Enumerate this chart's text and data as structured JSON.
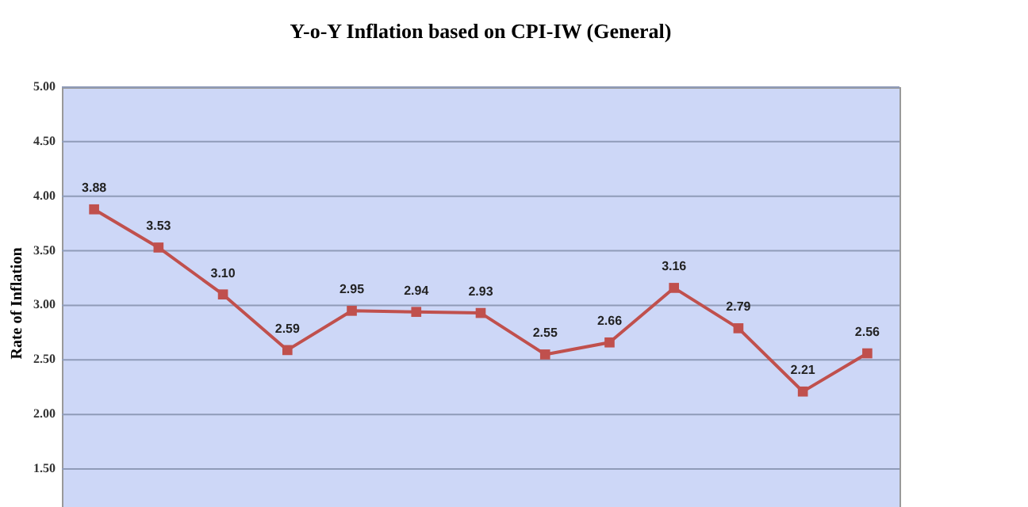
{
  "chart_data": {
    "type": "line",
    "title": "Y-o-Y Inflation based on CPI-IW (General)",
    "ylabel": "Rate of Inflation",
    "categories": [
      null,
      null,
      null,
      null,
      null,
      null,
      null,
      null,
      null,
      null,
      null,
      null,
      null
    ],
    "series": [
      {
        "color": "#c0504d",
        "values": [
          3.88,
          3.53,
          3.1,
          2.59,
          2.95,
          2.94,
          2.93,
          2.55,
          2.66,
          3.16,
          2.79,
          2.21,
          2.56
        ],
        "value_labels": [
          "3.88",
          "3.53",
          "3.10",
          "2.59",
          "2.95",
          "2.94",
          "2.93",
          "2.55",
          "2.66",
          "3.16",
          "2.79",
          "2.21",
          "2.56"
        ]
      }
    ],
    "ylim": [
      1.05,
      5.0
    ],
    "yticks": [
      {
        "value": 1.5,
        "label": "1.50"
      },
      {
        "value": 2.0,
        "label": "2.00"
      },
      {
        "value": 2.5,
        "label": "2.50"
      },
      {
        "value": 3.0,
        "label": "3.00"
      },
      {
        "value": 3.5,
        "label": "3.50"
      },
      {
        "value": 4.0,
        "label": "4.00"
      },
      {
        "value": 4.5,
        "label": "4.50"
      },
      {
        "value": 5.0,
        "label": "5.00"
      }
    ],
    "grid": "y",
    "marker": "square",
    "line_style": "solid"
  }
}
